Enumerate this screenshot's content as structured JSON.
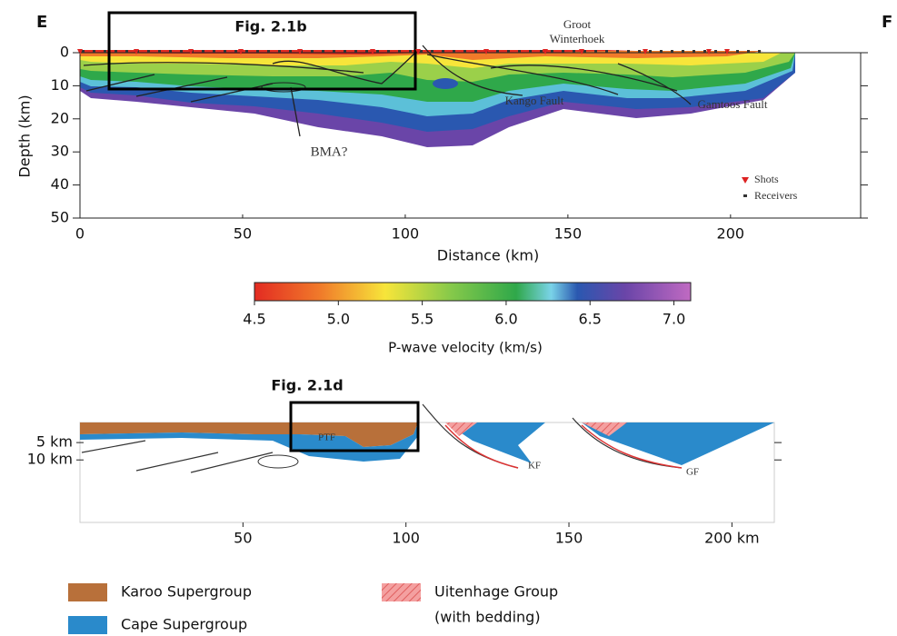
{
  "labels": {
    "left_end": "E",
    "right_end": "F"
  },
  "velocity_panel": {
    "box_label": "Fig. 2.1b",
    "x_label": "Distance (km)",
    "y_label": "Depth (km)",
    "xlim": [
      0,
      240
    ],
    "xticks": [
      0,
      50,
      100,
      150,
      200
    ],
    "ylim": [
      0,
      50
    ],
    "yticks": [
      0,
      10,
      20,
      30,
      40,
      50
    ],
    "annotations": {
      "groot": "Groot",
      "winterhoek": "Winterhoek",
      "kango": "Kango Fault",
      "gamtoos": "Gamtoos Fault",
      "bma": "BMA?"
    },
    "legend": [
      "Shots",
      "Receivers"
    ]
  },
  "colorbar": {
    "label": "P-wave velocity (km/s)",
    "lim": [
      4.5,
      7.1
    ],
    "ticks": [
      4.5,
      {
        "value": 5.0,
        "label": "5.0"
      },
      5.5,
      {
        "value": 6.0,
        "label": "6.0"
      },
      6.5,
      {
        "value": 7.0,
        "label": "7.0"
      }
    ]
  },
  "section_panel": {
    "box_label": "Fig. 2.1d",
    "xlim": [
      0,
      213
    ],
    "ylim": [
      0,
      28
    ],
    "xticks": [
      50,
      100,
      150,
      {
        "value": 200,
        "label": "200 km"
      }
    ],
    "yticks": [
      {
        "value": 5,
        "label": "5 km"
      },
      {
        "value": 10,
        "label": "10 km"
      }
    ],
    "faults": [
      "PTF",
      "KF",
      "GF"
    ]
  },
  "legend": [
    {
      "label": "Karoo Supergroup"
    },
    {
      "label": "Cape Supergroup"
    },
    {
      "label": "Uitenhage Group",
      "note": "(with bedding)"
    }
  ]
}
